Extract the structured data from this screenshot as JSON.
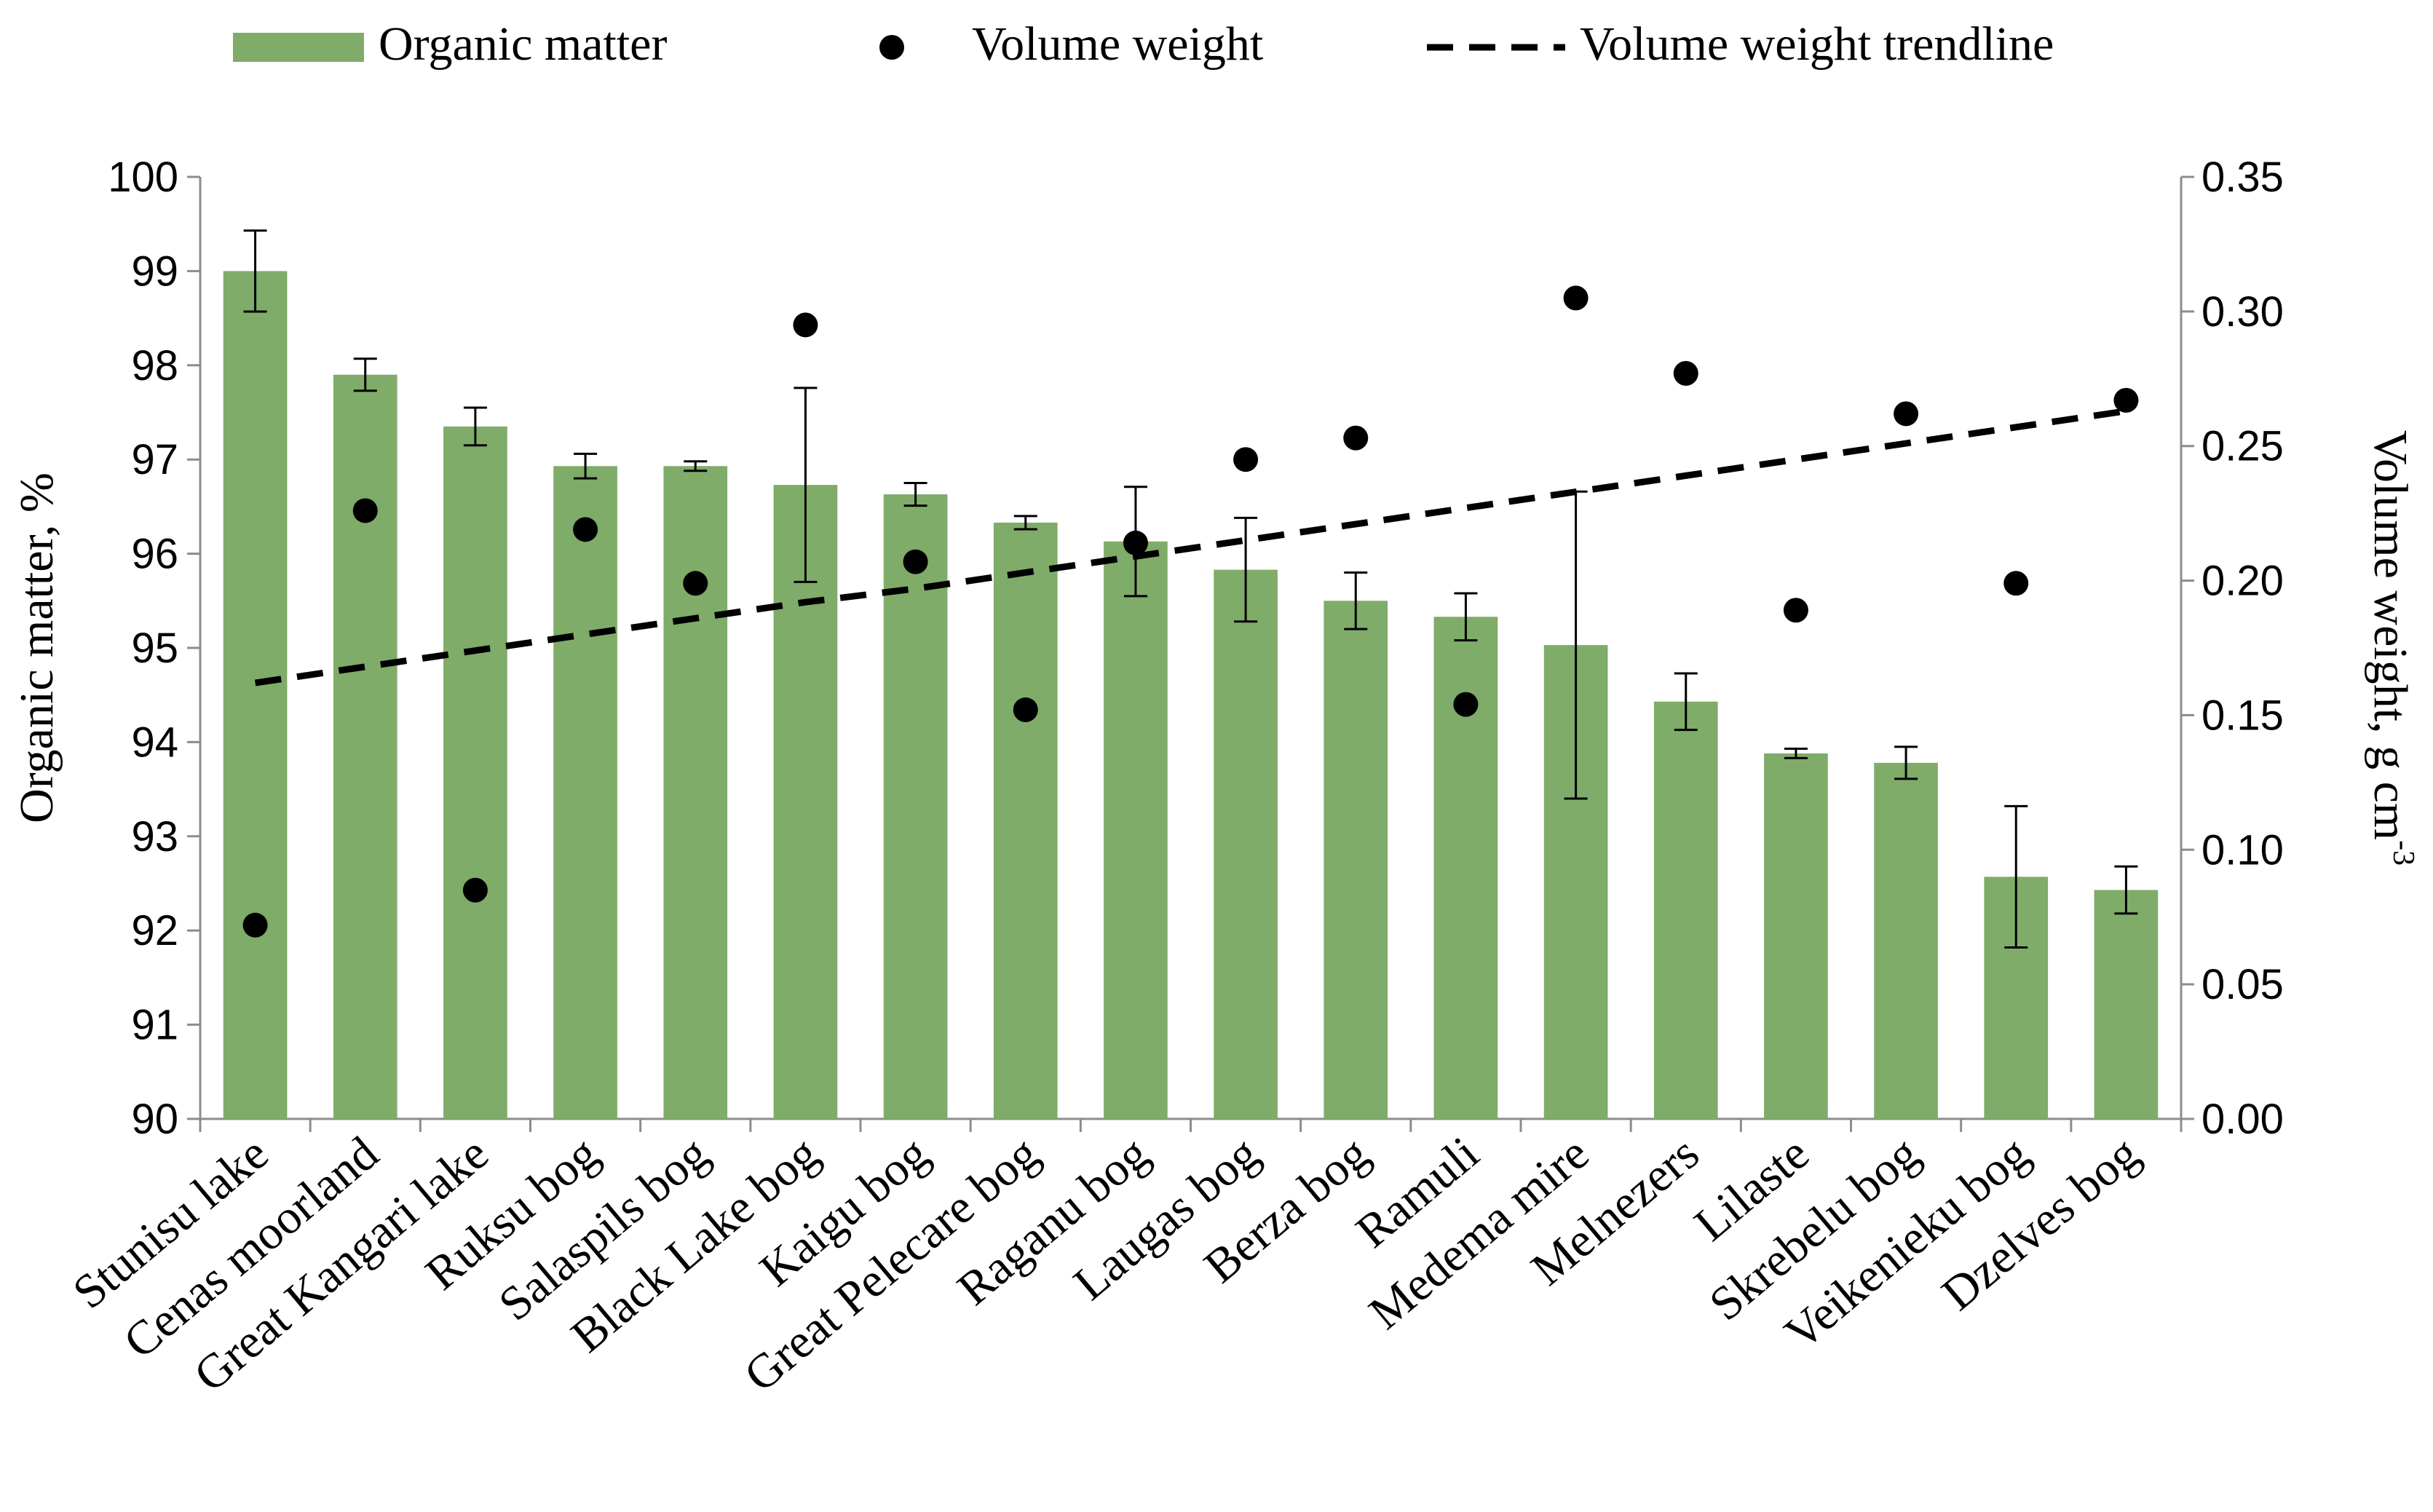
{
  "chart_data": {
    "type": "bar",
    "categories": [
      "Stunisu lake",
      "Cenas moorland",
      "Great Kangari lake",
      "Ruksu bog",
      "Salaspils bog",
      "Black Lake bog",
      "Kaigu bog",
      "Great Pelecare bog",
      "Raganu bog",
      "Laugas bog",
      "Berza bog",
      "Ramuli",
      "Medema mire",
      "Melnezers",
      "Lilaste",
      "Skrebelu bog",
      "Veikenieku bog",
      "Dzelves bog"
    ],
    "series": [
      {
        "name": "Organic matter",
        "axis": "left",
        "kind": "bar",
        "color": "#7fac69",
        "values": [
          99.0,
          97.9,
          97.35,
          96.93,
          96.93,
          96.73,
          96.63,
          96.33,
          96.13,
          95.83,
          95.5,
          95.33,
          95.03,
          94.43,
          93.88,
          93.78,
          92.57,
          92.43
        ],
        "error": [
          0.43,
          0.17,
          0.2,
          0.13,
          0.05,
          1.03,
          0.12,
          0.07,
          0.58,
          0.55,
          0.3,
          0.25,
          1.63,
          0.3,
          0.05,
          0.17,
          0.75,
          0.25
        ]
      },
      {
        "name": "Volume weight",
        "axis": "right",
        "kind": "scatter",
        "color": "#000000",
        "values": [
          0.072,
          0.226,
          0.085,
          0.219,
          0.199,
          0.295,
          0.207,
          0.152,
          0.214,
          0.245,
          0.253,
          0.154,
          0.305,
          0.277,
          0.189,
          0.262,
          0.199,
          0.267
        ]
      },
      {
        "name": "Volume weight trendline",
        "axis": "right",
        "kind": "line",
        "dashed": true,
        "color": "#000000",
        "values": [
          0.162,
          0.168,
          0.174,
          0.18,
          0.186,
          0.192,
          0.197,
          0.203,
          0.209,
          0.215,
          0.221,
          0.227,
          0.233,
          0.239,
          0.245,
          0.251,
          0.257,
          0.263
        ]
      }
    ],
    "ylabel": "Organic matter, %",
    "y2label_main": "Volume weight, g cm",
    "y2label_sup": "-3",
    "ylim": [
      90,
      100
    ],
    "y2lim": [
      0,
      0.35
    ],
    "yticks": [
      "90",
      "91",
      "92",
      "93",
      "94",
      "95",
      "96",
      "97",
      "98",
      "99",
      "100"
    ],
    "y2ticks": [
      "0.00",
      "0.05",
      "0.10",
      "0.15",
      "0.20",
      "0.25",
      "0.30",
      "0.35"
    ],
    "legend_position": "top",
    "grid": false
  }
}
